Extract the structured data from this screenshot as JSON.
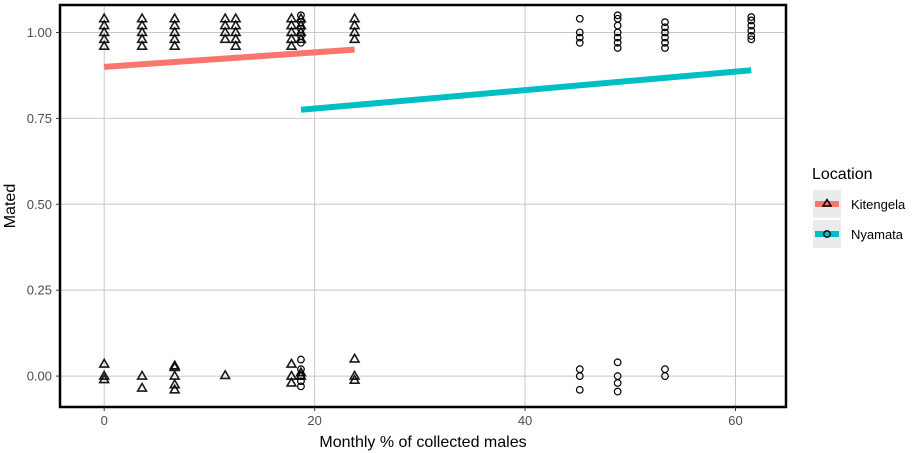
{
  "chart_data": {
    "type": "scatter",
    "xlabel": "Monthly % of collected males",
    "ylabel": "Mated",
    "xlim": [
      -4.2,
      64.8
    ],
    "ylim": [
      -0.09,
      1.08
    ],
    "xticks": [
      0,
      20,
      40,
      60
    ],
    "xtick_labels": [
      "0",
      "20",
      "40",
      "60"
    ],
    "yticks": [
      0,
      0.25,
      0.5,
      0.75,
      1.0
    ],
    "ytick_labels": [
      "0.00",
      "0.25",
      "0.50",
      "0.75",
      "1.00"
    ],
    "grid": true,
    "legend": {
      "title": "Location",
      "placement": "right",
      "entries": [
        {
          "label": "Kitengela",
          "color": "#f8766d",
          "marker": "triangle"
        },
        {
          "label": "Nyamata",
          "color": "#00bfc4",
          "marker": "circle"
        }
      ]
    },
    "series": [
      {
        "name": "Kitengela",
        "marker": "triangle",
        "line_color": "#f8766d",
        "x_values": [
          0,
          3.6,
          6.7,
          11.5,
          12.5,
          17.8,
          18.7,
          23.8
        ],
        "points": [
          [
            0,
            1.04
          ],
          [
            0,
            1.02
          ],
          [
            0,
            1.0
          ],
          [
            0,
            0.98
          ],
          [
            0,
            0.96
          ],
          [
            3.6,
            1.04
          ],
          [
            3.6,
            1.02
          ],
          [
            3.6,
            1.0
          ],
          [
            3.6,
            0.98
          ],
          [
            3.6,
            0.96
          ],
          [
            6.7,
            1.04
          ],
          [
            6.7,
            1.02
          ],
          [
            6.7,
            1.0
          ],
          [
            6.7,
            0.98
          ],
          [
            6.7,
            0.96
          ],
          [
            11.5,
            1.04
          ],
          [
            11.5,
            1.02
          ],
          [
            11.5,
            1.0
          ],
          [
            11.5,
            0.98
          ],
          [
            12.5,
            1.04
          ],
          [
            12.5,
            1.02
          ],
          [
            12.5,
            1.0
          ],
          [
            12.5,
            0.98
          ],
          [
            12.5,
            0.96
          ],
          [
            17.8,
            1.04
          ],
          [
            17.8,
            1.02
          ],
          [
            17.8,
            1.0
          ],
          [
            17.8,
            0.98
          ],
          [
            17.8,
            0.96
          ],
          [
            18.7,
            1.04
          ],
          [
            18.7,
            1.02
          ],
          [
            18.7,
            1.0
          ],
          [
            18.7,
            0.98
          ],
          [
            23.8,
            1.04
          ],
          [
            23.8,
            1.02
          ],
          [
            23.8,
            1.0
          ],
          [
            23.8,
            0.98
          ],
          [
            0,
            0.035
          ],
          [
            0,
            0.0
          ],
          [
            0,
            -0.01
          ],
          [
            3.6,
            0.0
          ],
          [
            3.6,
            -0.035
          ],
          [
            6.7,
            0.03
          ],
          [
            6.7,
            0.025
          ],
          [
            6.7,
            0.0
          ],
          [
            6.7,
            -0.025
          ],
          [
            6.7,
            -0.04
          ],
          [
            11.5,
            0.002
          ],
          [
            17.8,
            0.035
          ],
          [
            17.8,
            0.0
          ],
          [
            17.8,
            -0.02
          ],
          [
            18.7,
            0.01
          ],
          [
            18.7,
            0.0
          ],
          [
            23.8,
            0.05
          ],
          [
            23.8,
            0.0
          ],
          [
            23.8,
            -0.012
          ]
        ],
        "fit": {
          "x": [
            0,
            23.8
          ],
          "y": [
            0.9,
            0.95
          ]
        }
      },
      {
        "name": "Nyamata",
        "marker": "circle",
        "line_color": "#00bfc4",
        "x_values": [
          18.7,
          45.2,
          48.8,
          53.3,
          61.5
        ],
        "points": [
          [
            18.7,
            1.05
          ],
          [
            18.7,
            1.03
          ],
          [
            18.7,
            1.01
          ],
          [
            18.7,
            0.99
          ],
          [
            18.7,
            0.97
          ],
          [
            45.2,
            1.04
          ],
          [
            45.2,
            1.0
          ],
          [
            45.2,
            0.985
          ],
          [
            45.2,
            0.97
          ],
          [
            48.8,
            1.05
          ],
          [
            48.8,
            1.04
          ],
          [
            48.8,
            1.02
          ],
          [
            48.8,
            1.0
          ],
          [
            48.8,
            0.985
          ],
          [
            48.8,
            0.97
          ],
          [
            48.8,
            0.955
          ],
          [
            53.3,
            1.03
          ],
          [
            53.3,
            1.015
          ],
          [
            53.3,
            1.0
          ],
          [
            53.3,
            0.985
          ],
          [
            53.3,
            0.97
          ],
          [
            53.3,
            0.955
          ],
          [
            61.5,
            1.045
          ],
          [
            61.5,
            1.035
          ],
          [
            61.5,
            1.02
          ],
          [
            61.5,
            1.005
          ],
          [
            61.5,
            0.99
          ],
          [
            61.5,
            0.98
          ],
          [
            18.7,
            0.048
          ],
          [
            18.7,
            0.02
          ],
          [
            18.7,
            0.0
          ],
          [
            18.7,
            -0.015
          ],
          [
            18.7,
            -0.03
          ],
          [
            45.2,
            0.02
          ],
          [
            45.2,
            0.0
          ],
          [
            45.2,
            -0.04
          ],
          [
            48.8,
            0.04
          ],
          [
            48.8,
            0.0
          ],
          [
            48.8,
            -0.02
          ],
          [
            48.8,
            -0.045
          ],
          [
            53.3,
            0.02
          ],
          [
            53.3,
            0.0
          ]
        ],
        "fit": {
          "x": [
            18.7,
            61.5
          ],
          "y": [
            0.775,
            0.89
          ]
        }
      }
    ]
  }
}
